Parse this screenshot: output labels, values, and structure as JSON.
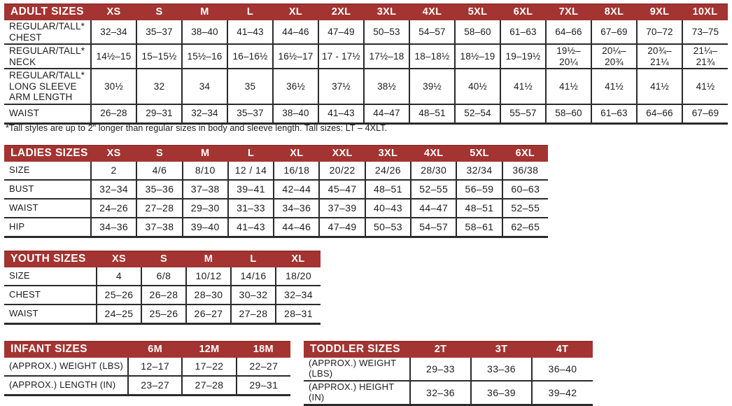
{
  "colors": {
    "header_bg": "#A33431",
    "header_fg": "#FFFFFF",
    "line": "#2A2A2A",
    "text": "#1D1D1D",
    "page_bg": "#FFFFFF"
  },
  "footnote": "*Tall styles are up to 2\" longer than regular sizes in body and sleeve length. Tall sizes: LT – 4XLT.",
  "tables": [
    {
      "id": "adult",
      "title": "ADULT SIZES",
      "columns": [
        "XS",
        "S",
        "M",
        "L",
        "XL",
        "2XL",
        "3XL",
        "4XL",
        "5XL",
        "6XL",
        "7XL",
        "8XL",
        "9XL",
        "10XL"
      ],
      "rows": [
        {
          "label": "REGULAR/TALL*\nCHEST",
          "values": [
            "32–34",
            "35–37",
            "38–40",
            "41–43",
            "44–46",
            "47–49",
            "50–53",
            "54–57",
            "58–60",
            "61–63",
            "64–66",
            "67–69",
            "70–72",
            "73–75"
          ]
        },
        {
          "label": "REGULAR/TALL*\nNECK",
          "values": [
            "14½–15",
            "15–15½",
            "15½–16",
            "16–16½",
            "16½–17",
            "17 - 17½",
            "17½–18",
            "18–18½",
            "18½–19",
            "19–19½",
            "19½–\n20¼",
            "20¼–\n20¾",
            "20¾–\n21¼",
            "21¼–\n21¾"
          ]
        },
        {
          "label": "REGULAR/TALL*\nLONG SLEEVE\nARM LENGTH",
          "values": [
            "30½",
            "32",
            "34",
            "35",
            "36½",
            "37½",
            "38½",
            "39½",
            "40½",
            "41½",
            "41½",
            "41½",
            "41½",
            "41½"
          ]
        },
        {
          "label": "WAIST",
          "values": [
            "26–28",
            "29–31",
            "32–34",
            "35–37",
            "38–40",
            "41–43",
            "44–47",
            "48–51",
            "52–54",
            "55–57",
            "58–60",
            "61–63",
            "64–66",
            "67–69"
          ]
        }
      ]
    },
    {
      "id": "ladies",
      "title": "LADIES SIZES",
      "columns": [
        "XS",
        "S",
        "M",
        "L",
        "XL",
        "XXL",
        "3XL",
        "4XL",
        "5XL",
        "6XL"
      ],
      "rows": [
        {
          "label": "SIZE",
          "values": [
            "2",
            "4/6",
            "8/10",
            "12 / 14",
            "16/18",
            "20/22",
            "24/26",
            "28/30",
            "32/34",
            "36/38"
          ]
        },
        {
          "label": "BUST",
          "values": [
            "32–34",
            "35–36",
            "37–38",
            "39–41",
            "42–44",
            "45–47",
            "48–51",
            "52–55",
            "56–59",
            "60–63"
          ]
        },
        {
          "label": "WAIST",
          "values": [
            "24–26",
            "27–28",
            "29–30",
            "31–33",
            "34–36",
            "37–39",
            "40–43",
            "44–47",
            "48–51",
            "52–55"
          ]
        },
        {
          "label": "HIP",
          "values": [
            "34–36",
            "37–38",
            "39–40",
            "41–43",
            "44–46",
            "47–49",
            "50–53",
            "54–57",
            "58–61",
            "62–65"
          ]
        }
      ]
    },
    {
      "id": "youth",
      "title": "YOUTH SIZES",
      "columns": [
        "XS",
        "S",
        "M",
        "L",
        "XL"
      ],
      "rows": [
        {
          "label": "SIZE",
          "values": [
            "4",
            "6/8",
            "10/12",
            "14/16",
            "18/20"
          ]
        },
        {
          "label": "CHEST",
          "values": [
            "25–26",
            "26–28",
            "28–30",
            "30–32",
            "32–34"
          ]
        },
        {
          "label": "WAIST",
          "values": [
            "24–25",
            "25–26",
            "26–27",
            "27–28",
            "28–31"
          ]
        }
      ]
    },
    {
      "id": "infant",
      "title": "INFANT SIZES",
      "columns": [
        "6M",
        "12M",
        "18M"
      ],
      "rows": [
        {
          "label": "(APPROX.) WEIGHT (LBS)",
          "values": [
            "12–17",
            "17–22",
            "22–27"
          ]
        },
        {
          "label": "(APPROX.) LENGTH (IN)",
          "values": [
            "23–27",
            "27–28",
            "29–31"
          ]
        }
      ]
    },
    {
      "id": "toddler",
      "title": "TODDLER SIZES",
      "columns": [
        "2T",
        "3T",
        "4T"
      ],
      "rows": [
        {
          "label": "(APPROX.) WEIGHT (LBS)",
          "values": [
            "29–33",
            "33–36",
            "36–40"
          ]
        },
        {
          "label": "(APPROX.) HEIGHT (IN)",
          "values": [
            "32–36",
            "36–39",
            "39–42"
          ]
        }
      ]
    }
  ]
}
